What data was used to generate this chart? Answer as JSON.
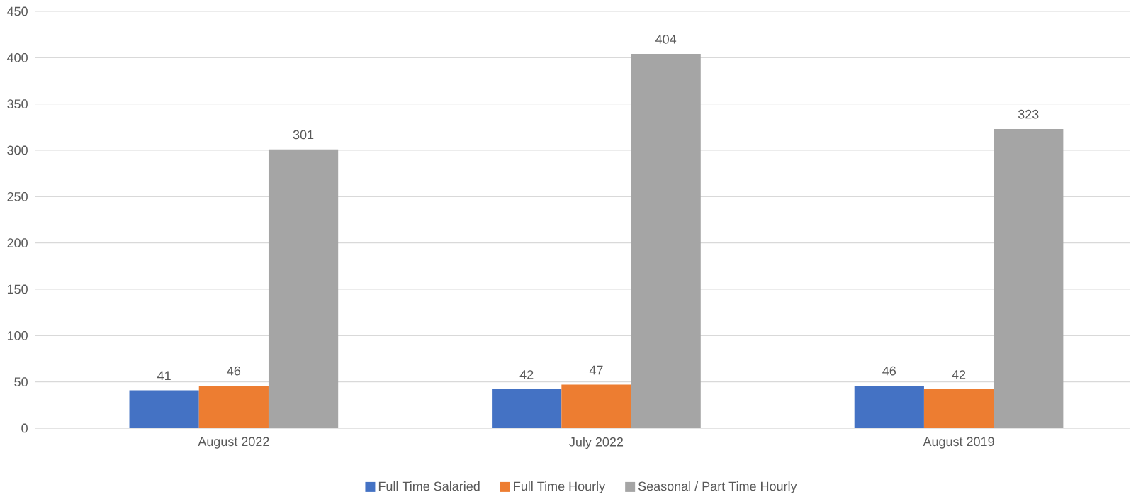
{
  "chart_data": {
    "type": "bar",
    "categories": [
      "August 2022",
      "July 2022",
      "August 2019"
    ],
    "series": [
      {
        "name": "Full Time Salaried",
        "color": "#4472c4",
        "values": [
          41,
          42,
          46
        ]
      },
      {
        "name": "Full Time Hourly",
        "color": "#ed7d31",
        "values": [
          46,
          47,
          42
        ]
      },
      {
        "name": "Seasonal / Part Time Hourly",
        "color": "#a5a5a5",
        "values": [
          301,
          404,
          323
        ]
      }
    ],
    "ylim": [
      0,
      450
    ],
    "yticks": [
      0,
      50,
      100,
      150,
      200,
      250,
      300,
      350,
      400,
      450
    ],
    "grid": "y",
    "legend": "bottom",
    "data_labels": true
  }
}
